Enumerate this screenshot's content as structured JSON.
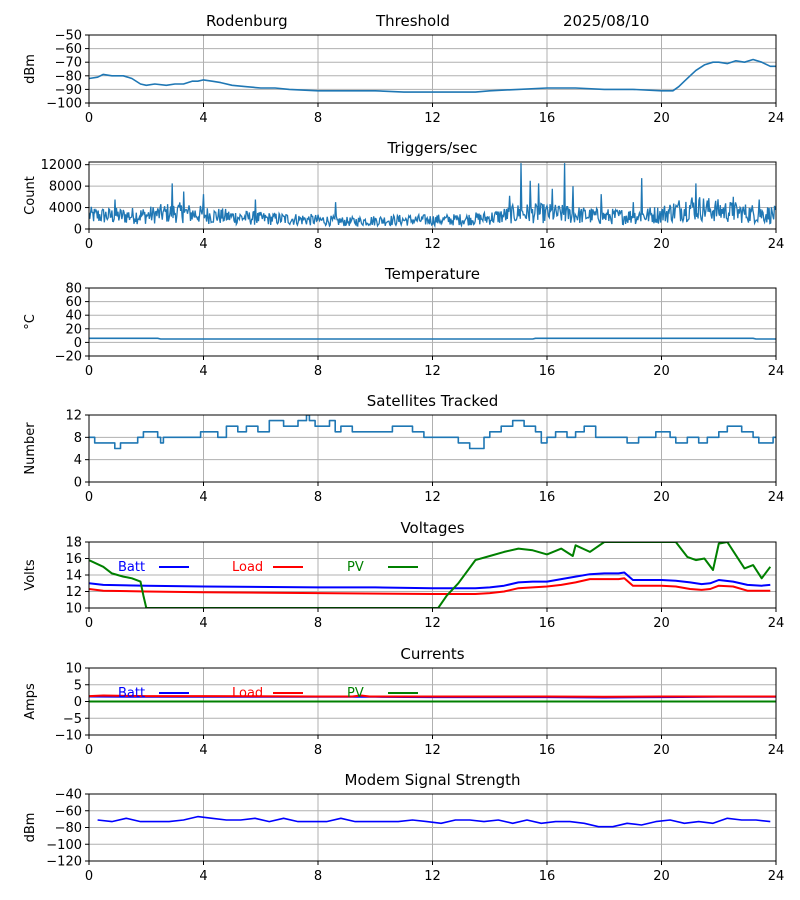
{
  "header": {
    "station": "Rodenburg",
    "mode": "Threshold",
    "date": "2025/08/10"
  },
  "colors": {
    "main": "#1f77b4",
    "batt": "#0000ff",
    "load": "#ff0000",
    "pv": "#008000",
    "grid": "#b0b0b0"
  },
  "chart_data": [
    {
      "type": "line",
      "title": "",
      "ylabel": "dBm",
      "xlim": [
        0,
        24
      ],
      "ylim": [
        -100,
        -50
      ],
      "xticks": [
        0,
        4,
        8,
        12,
        16,
        20,
        24
      ],
      "yticks": [
        -100,
        -90,
        -80,
        -70,
        -60,
        -50
      ],
      "grid": true,
      "series": [
        {
          "color": "#1f77b4",
          "x": [
            0,
            0.3,
            0.5,
            0.8,
            1.2,
            1.5,
            1.8,
            2.0,
            2.3,
            2.7,
            3.0,
            3.3,
            3.6,
            3.8,
            4.0,
            4.3,
            4.6,
            5.0,
            5.5,
            6.0,
            6.5,
            7.0,
            8.0,
            9.0,
            10.0,
            11.0,
            12.0,
            13.0,
            13.5,
            14.0,
            15.0,
            16.0,
            17.0,
            18.0,
            19.0,
            20.0,
            20.4,
            20.6,
            20.8,
            21.0,
            21.2,
            21.5,
            21.8,
            22.0,
            22.3,
            22.6,
            22.9,
            23.2,
            23.5,
            23.8,
            24.0
          ],
          "y": [
            -82,
            -81,
            -79,
            -80,
            -80,
            -82,
            -86,
            -87,
            -86,
            -87,
            -86,
            -86,
            -84,
            -84,
            -83,
            -84,
            -85,
            -87,
            -88,
            -89,
            -89,
            -90,
            -91,
            -91,
            -91,
            -92,
            -92,
            -92,
            -92,
            -91,
            -90,
            -89,
            -89,
            -90,
            -90,
            -91,
            -91,
            -88,
            -84,
            -80,
            -76,
            -72,
            -70,
            -70,
            -71,
            -69,
            -70,
            -68,
            -70,
            -73,
            -73
          ]
        }
      ]
    },
    {
      "type": "line",
      "title": "Triggers/sec",
      "ylabel": "Count",
      "xlim": [
        0,
        24
      ],
      "ylim": [
        0,
        12500
      ],
      "xticks": [
        0,
        4,
        8,
        12,
        16,
        20,
        24
      ],
      "yticks": [
        0,
        4000,
        8000,
        12000
      ],
      "grid": true,
      "noise": {
        "color": "#1f77b4",
        "baseline_x": [
          0,
          1,
          2,
          3,
          4,
          5,
          6,
          7,
          8,
          9,
          10,
          11,
          12,
          13,
          14,
          15,
          16,
          17,
          18,
          19,
          20,
          21,
          22,
          23,
          24
        ],
        "baseline_y": [
          2600,
          2500,
          2600,
          3200,
          2700,
          2300,
          2000,
          1900,
          1700,
          1400,
          1600,
          1700,
          1700,
          1800,
          2100,
          3000,
          3000,
          2700,
          2400,
          2400,
          2800,
          4200,
          3500,
          3000,
          2700
        ],
        "spikes": [
          [
            0.9,
            5500
          ],
          [
            2.9,
            8500
          ],
          [
            3.3,
            7000
          ],
          [
            4.0,
            6500
          ],
          [
            5.8,
            5500
          ],
          [
            8.6,
            5000
          ],
          [
            14.7,
            6200
          ],
          [
            15.1,
            12300
          ],
          [
            15.4,
            9000
          ],
          [
            15.7,
            8500
          ],
          [
            16.2,
            7500
          ],
          [
            16.6,
            12300
          ],
          [
            16.9,
            8000
          ],
          [
            17.9,
            6500
          ],
          [
            19.0,
            5000
          ],
          [
            19.3,
            9500
          ],
          [
            21.2,
            8500
          ],
          [
            22.5,
            6000
          ],
          [
            23.4,
            5500
          ]
        ]
      }
    },
    {
      "type": "line",
      "title": "Temperature",
      "ylabel": "°C",
      "xlim": [
        0,
        24
      ],
      "ylim": [
        -20,
        80
      ],
      "xticks": [
        0,
        4,
        8,
        12,
        16,
        20,
        24
      ],
      "yticks": [
        -20,
        0,
        20,
        40,
        60,
        80
      ],
      "grid": true,
      "series": [
        {
          "color": "#1f77b4",
          "x": [
            0,
            2.4,
            2.5,
            15.5,
            15.6,
            23.2,
            23.3,
            24
          ],
          "y": [
            6,
            6,
            5,
            5,
            6,
            6,
            5,
            5
          ]
        }
      ]
    },
    {
      "type": "line",
      "title": "Satellites Tracked",
      "ylabel": "Number",
      "xlim": [
        0,
        24
      ],
      "ylim": [
        0,
        12
      ],
      "xticks": [
        0,
        4,
        8,
        12,
        16,
        20,
        24
      ],
      "yticks": [
        0,
        4,
        8,
        12
      ],
      "grid": true,
      "series": [
        {
          "color": "#1f77b4",
          "step": true,
          "x": [
            0,
            0.2,
            0.7,
            0.9,
            1.1,
            1.7,
            1.9,
            2.4,
            2.5,
            2.6,
            3.5,
            3.9,
            4.3,
            4.5,
            4.8,
            5.2,
            5.5,
            5.9,
            6.3,
            6.8,
            7.3,
            7.6,
            7.7,
            7.9,
            8.4,
            8.6,
            8.8,
            9.2,
            10.2,
            10.6,
            11.3,
            11.7,
            12.2,
            12.9,
            13.3,
            13.8,
            14.0,
            14.4,
            14.8,
            15.2,
            15.6,
            15.8,
            16.0,
            16.3,
            16.7,
            17.0,
            17.3,
            17.7,
            18.3,
            18.8,
            19.2,
            19.8,
            20.3,
            20.5,
            20.9,
            21.3,
            21.6,
            22.0,
            22.3,
            22.8,
            23.2,
            23.4,
            23.9
          ],
          "y": [
            8,
            7,
            7,
            6,
            7,
            8,
            9,
            8,
            7,
            8,
            8,
            9,
            9,
            8,
            10,
            9,
            10,
            9,
            11,
            10,
            11,
            12,
            11,
            10,
            11,
            9,
            10,
            9,
            9,
            10,
            9,
            8,
            8,
            7,
            6,
            8,
            9,
            10,
            11,
            10,
            9,
            7,
            8,
            9,
            8,
            9,
            10,
            8,
            8,
            7,
            8,
            9,
            8,
            7,
            8,
            7,
            8,
            9,
            10,
            9,
            8,
            7,
            8
          ]
        }
      ]
    },
    {
      "type": "line",
      "title": "Voltages",
      "ylabel": "Volts",
      "xlim": [
        0,
        24
      ],
      "ylim": [
        10,
        18
      ],
      "xticks": [
        0,
        4,
        8,
        12,
        16,
        20,
        24
      ],
      "yticks": [
        10,
        12,
        14,
        16,
        18
      ],
      "grid": true,
      "legend": {
        "placement": "top-left",
        "labels": [
          "Batt",
          "Load",
          "PV"
        ]
      },
      "series": [
        {
          "name": "Batt",
          "color": "#0000ff",
          "x": [
            0,
            0.5,
            2,
            4,
            8,
            10,
            12,
            13,
            13.5,
            14,
            14.5,
            15,
            15.5,
            16,
            16.5,
            17,
            17.5,
            18,
            18.5,
            18.7,
            19,
            20,
            20.5,
            21,
            21.4,
            21.7,
            22,
            22.5,
            23,
            23.5,
            23.8
          ],
          "y": [
            13.0,
            12.8,
            12.7,
            12.6,
            12.5,
            12.5,
            12.4,
            12.4,
            12.4,
            12.5,
            12.7,
            13.1,
            13.2,
            13.2,
            13.5,
            13.8,
            14.1,
            14.2,
            14.2,
            14.3,
            13.4,
            13.4,
            13.3,
            13.1,
            12.9,
            13.0,
            13.4,
            13.2,
            12.8,
            12.7,
            12.8
          ]
        },
        {
          "name": "Load",
          "color": "#ff0000",
          "x": [
            0,
            0.5,
            2,
            4,
            8,
            12,
            13,
            13.5,
            14,
            14.5,
            15,
            15.5,
            16,
            16.5,
            17,
            17.5,
            18,
            18.5,
            18.7,
            19,
            20,
            20.5,
            21,
            21.4,
            21.7,
            22,
            22.5,
            23,
            23.5,
            23.8
          ],
          "y": [
            12.3,
            12.1,
            12.0,
            11.9,
            11.8,
            11.7,
            11.7,
            11.7,
            11.8,
            12.0,
            12.4,
            12.5,
            12.6,
            12.8,
            13.1,
            13.5,
            13.5,
            13.5,
            13.6,
            12.7,
            12.7,
            12.6,
            12.3,
            12.2,
            12.3,
            12.7,
            12.6,
            12.1,
            12.1,
            12.1
          ]
        },
        {
          "name": "PV",
          "color": "#008000",
          "x": [
            0,
            0.5,
            0.8,
            1.2,
            1.5,
            1.8,
            1.9,
            2.0,
            12.2,
            12.5,
            12.9,
            13.5,
            14.0,
            14.5,
            15.0,
            15.5,
            16.0,
            16.5,
            16.9,
            17.0,
            17.5,
            18.0,
            18.3,
            20.5,
            20.9,
            21.2,
            21.5,
            21.8,
            22.0,
            22.3,
            22.6,
            22.9,
            23.2,
            23.5,
            23.8
          ],
          "y": [
            15.8,
            15.0,
            14.2,
            13.8,
            13.6,
            13.2,
            11.5,
            10.0,
            10.0,
            11.5,
            13.0,
            15.8,
            16.3,
            16.8,
            17.2,
            17.0,
            16.5,
            17.2,
            16.3,
            17.6,
            16.8,
            18.0,
            18.0,
            18.0,
            16.2,
            15.8,
            16.0,
            14.6,
            17.8,
            18.0,
            16.4,
            14.8,
            15.2,
            13.6,
            15.0
          ]
        }
      ]
    },
    {
      "type": "line",
      "title": "Currents",
      "ylabel": "Amps",
      "xlim": [
        0,
        24
      ],
      "ylim": [
        -10,
        10
      ],
      "xticks": [
        0,
        4,
        8,
        12,
        16,
        20,
        24
      ],
      "yticks": [
        -10,
        -5,
        0,
        5,
        10
      ],
      "grid": true,
      "legend": {
        "placement": "top-left",
        "labels": [
          "Batt",
          "Load",
          "PV"
        ]
      },
      "series": [
        {
          "name": "Batt",
          "color": "#0000ff",
          "x": [
            0,
            2,
            4,
            8,
            10,
            12,
            16,
            18,
            20,
            22,
            24
          ],
          "y": [
            1.5,
            1.4,
            1.4,
            1.4,
            1.4,
            1.3,
            1.3,
            1.2,
            1.3,
            1.4,
            1.4
          ]
        },
        {
          "name": "Load",
          "color": "#ff0000",
          "x": [
            0,
            0.5,
            1,
            2,
            4,
            8,
            9.2,
            9.5,
            9.8,
            12,
            14,
            16,
            18,
            20,
            22,
            24
          ],
          "y": [
            1.6,
            1.8,
            1.7,
            1.6,
            1.6,
            1.5,
            1.5,
            1.8,
            1.5,
            1.5,
            1.5,
            1.5,
            1.4,
            1.5,
            1.5,
            1.5
          ]
        },
        {
          "name": "PV",
          "color": "#008000",
          "x": [
            0,
            24
          ],
          "y": [
            0,
            0
          ]
        }
      ]
    },
    {
      "type": "line",
      "title": "Modem Signal Strength",
      "ylabel": "dBm",
      "xlim": [
        0,
        24
      ],
      "ylim": [
        -120,
        -40
      ],
      "xticks": [
        0,
        4,
        8,
        12,
        16,
        20,
        24
      ],
      "yticks": [
        -120,
        -100,
        -80,
        -60,
        -40
      ],
      "grid": true,
      "series": [
        {
          "color": "#0000ff",
          "x": [
            0.3,
            0.8,
            1.3,
            1.8,
            2.3,
            2.8,
            3.3,
            3.8,
            4.3,
            4.8,
            5.3,
            5.8,
            6.3,
            6.8,
            7.3,
            7.8,
            8.3,
            8.8,
            9.3,
            9.8,
            10.3,
            10.8,
            11.3,
            11.8,
            12.3,
            12.8,
            13.3,
            13.8,
            14.3,
            14.8,
            15.3,
            15.8,
            16.3,
            16.8,
            17.3,
            17.8,
            18.3,
            18.8,
            19.3,
            19.8,
            20.3,
            20.8,
            21.3,
            21.8,
            22.3,
            22.8,
            23.3,
            23.8
          ],
          "y": [
            -71,
            -73,
            -69,
            -73,
            -73,
            -73,
            -71,
            -67,
            -69,
            -71,
            -71,
            -69,
            -73,
            -69,
            -73,
            -73,
            -73,
            -69,
            -73,
            -73,
            -73,
            -73,
            -71,
            -73,
            -75,
            -71,
            -71,
            -73,
            -71,
            -75,
            -71,
            -75,
            -73,
            -73,
            -75,
            -79,
            -79,
            -75,
            -77,
            -73,
            -71,
            -75,
            -73,
            -75,
            -69,
            -71,
            -71,
            -73
          ]
        }
      ]
    }
  ]
}
